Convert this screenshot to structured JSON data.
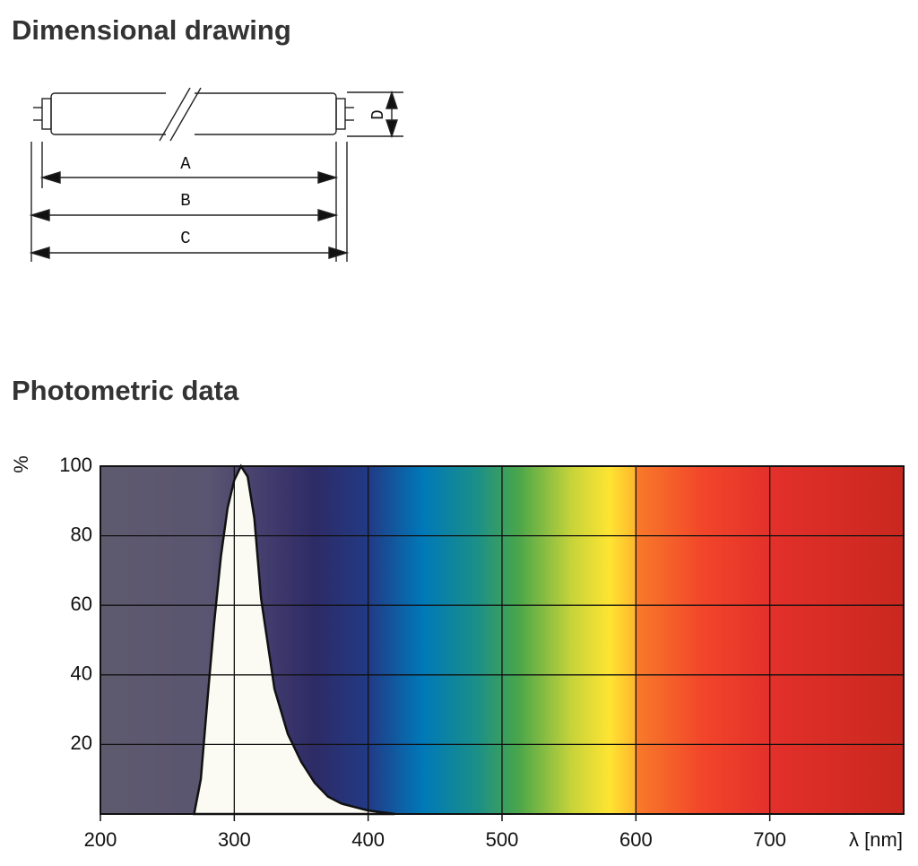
{
  "dimensional_drawing": {
    "title": "Dimensional drawing",
    "labels": {
      "a": "A",
      "b": "B",
      "c": "C",
      "d": "D"
    }
  },
  "photometric_data": {
    "title": "Photometric data"
  },
  "chart_data": {
    "type": "area",
    "x_label": "λ [nm]",
    "y_label": "%",
    "x": [
      270,
      275,
      280,
      285,
      290,
      295,
      300,
      305,
      310,
      315,
      320,
      330,
      340,
      350,
      360,
      370,
      380,
      400,
      420
    ],
    "values": [
      0,
      10,
      33,
      55,
      74,
      88,
      96,
      100,
      97,
      85,
      62,
      36,
      23,
      15,
      9,
      5,
      3,
      1,
      0
    ],
    "color": "#fbfbf4",
    "xlim": [
      200,
      800
    ],
    "ylim": [
      0,
      100
    ],
    "xticks": [
      200,
      300,
      400,
      500,
      600,
      700
    ],
    "yticks": [
      20,
      40,
      60,
      80,
      100
    ],
    "grid": true
  }
}
